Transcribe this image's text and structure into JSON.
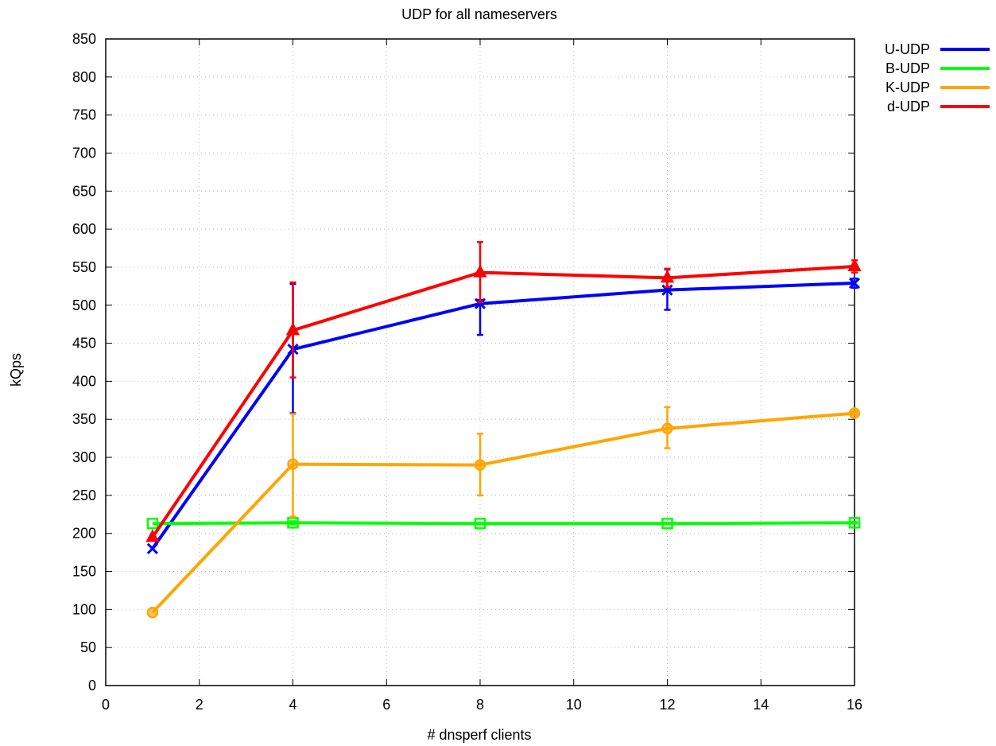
{
  "chart_data": {
    "type": "line",
    "title": "UDP for all nameservers",
    "xlabel": "# dnsperf clients",
    "ylabel": "kQps",
    "xlim": [
      0,
      16
    ],
    "ylim": [
      0,
      850
    ],
    "xticks": [
      0,
      2,
      4,
      6,
      8,
      10,
      12,
      14,
      16
    ],
    "yticks": [
      0,
      50,
      100,
      150,
      200,
      250,
      300,
      350,
      400,
      450,
      500,
      550,
      600,
      650,
      700,
      750,
      800,
      850
    ],
    "grid": true,
    "legend_position": "top-right outside",
    "series": [
      {
        "name": "U-UDP",
        "color": "#0000ff",
        "marker": "x",
        "x": [
          1,
          4,
          8,
          12,
          16
        ],
        "y": [
          180,
          442,
          502,
          520,
          529
        ],
        "err_low": [
          180,
          358,
          461,
          494,
          523
        ],
        "err_high": [
          180,
          528,
          507,
          547,
          535
        ]
      },
      {
        "name": "B-UDP",
        "color": "#00ff00",
        "marker": "square",
        "x": [
          1,
          4,
          8,
          12,
          16
        ],
        "y": [
          213,
          214,
          213,
          213,
          214
        ],
        "err_low": [
          213,
          212,
          212,
          212,
          213
        ],
        "err_high": [
          213,
          216,
          214,
          214,
          215
        ]
      },
      {
        "name": "K-UDP",
        "color": "#ffa500",
        "marker": "circle",
        "x": [
          1,
          4,
          8,
          12,
          16
        ],
        "y": [
          96,
          291,
          290,
          338,
          358
        ],
        "err_low": [
          96,
          222,
          250,
          312,
          356
        ],
        "err_high": [
          96,
          357,
          331,
          366,
          360
        ]
      },
      {
        "name": "d-UDP",
        "color": "#ff0000",
        "marker": "triangle",
        "x": [
          1,
          4,
          8,
          12,
          16
        ],
        "y": [
          195,
          467,
          543,
          536,
          551
        ],
        "err_low": [
          195,
          405,
          504,
          524,
          543
        ],
        "err_high": [
          195,
          530,
          583,
          548,
          559
        ]
      }
    ]
  }
}
